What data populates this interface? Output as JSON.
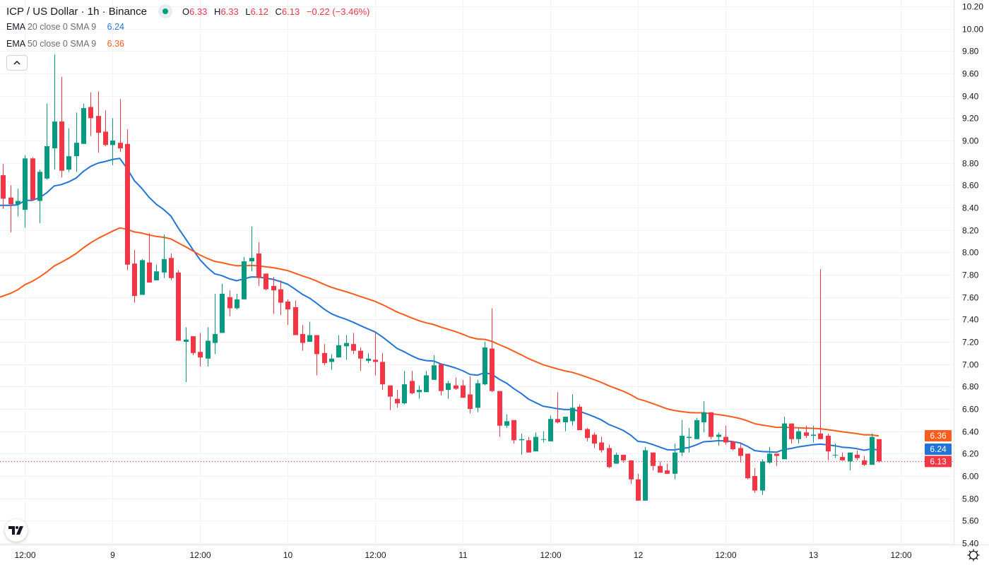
{
  "header": {
    "title": "ICP / US Dollar · 1h · Binance",
    "ohlc": [
      {
        "key": "O",
        "value": "6.33"
      },
      {
        "key": "H",
        "value": "6.33"
      },
      {
        "key": "L",
        "value": "6.12"
      },
      {
        "key": "C",
        "value": "6.13"
      }
    ],
    "change": "−0.22 (−3.46%)",
    "status_icon": "market-open-dot"
  },
  "indicators": [
    {
      "name": "EMA",
      "params": "20 close 0 SMA 9",
      "value": "6.24",
      "color": "#2175D9"
    },
    {
      "name": "EMA",
      "params": "50 close 0 SMA 9",
      "value": "6.36",
      "color": "#FF5B1A"
    }
  ],
  "collapse_icon": "chevron-up-icon",
  "collapse_label": "^",
  "logo_text": "TV",
  "colors": {
    "up": "#089981",
    "down": "#F23645",
    "grid": "#f0f3fa",
    "last_price": "#F23645"
  },
  "chart_data": {
    "type": "candlestick",
    "symbol": "ICP / US Dollar",
    "interval": "1h",
    "ylim": [
      5.4,
      10.2
    ],
    "y_ticks": [
      "10.20",
      "10.00",
      "9.80",
      "9.60",
      "9.40",
      "9.20",
      "9.00",
      "8.80",
      "8.60",
      "8.40",
      "8.20",
      "8.00",
      "7.80",
      "7.60",
      "7.40",
      "7.20",
      "7.00",
      "6.80",
      "6.60",
      "6.40",
      "6.20",
      "6.00",
      "5.80",
      "5.60",
      "5.40"
    ],
    "x_ticks": [
      {
        "label": "12:00",
        "index": 3
      },
      {
        "label": "9",
        "index": 15
      },
      {
        "label": "12:00",
        "index": 27
      },
      {
        "label": "10",
        "index": 39
      },
      {
        "label": "12:00",
        "index": 51
      },
      {
        "label": "11",
        "index": 63
      },
      {
        "label": "12:00",
        "index": 75
      },
      {
        "label": "12",
        "index": 87
      },
      {
        "label": "12:00",
        "index": 99
      },
      {
        "label": "13",
        "index": 111
      },
      {
        "label": "12:00",
        "index": 123
      }
    ],
    "grid": true,
    "last_price": 6.13,
    "price_labels": [
      {
        "value": "6.36",
        "color": "#FF5B1A"
      },
      {
        "value": "6.24",
        "color": "#2175D9"
      },
      {
        "value": "6.13",
        "color": "#F23645"
      }
    ],
    "ema": [
      {
        "period": 20,
        "seed": 8.42,
        "color": "#2175D9"
      },
      {
        "period": 50,
        "seed": 7.6,
        "color": "#FF5B1A"
      }
    ],
    "ohlc": [
      [
        8.69,
        8.79,
        8.39,
        8.48
      ],
      [
        8.49,
        8.6,
        8.18,
        8.43
      ],
      [
        8.43,
        8.57,
        8.32,
        8.46
      ],
      [
        8.38,
        8.87,
        8.22,
        8.84
      ],
      [
        8.84,
        8.85,
        8.47,
        8.47
      ],
      [
        8.46,
        8.74,
        8.26,
        8.72
      ],
      [
        8.66,
        9.33,
        8.65,
        8.95
      ],
      [
        8.93,
        9.77,
        8.74,
        9.17
      ],
      [
        9.17,
        9.57,
        8.67,
        8.73
      ],
      [
        8.74,
        9.11,
        8.72,
        8.86
      ],
      [
        8.86,
        9.25,
        8.72,
        8.98
      ],
      [
        8.97,
        9.33,
        8.97,
        9.29
      ],
      [
        9.3,
        9.43,
        9.04,
        9.2
      ],
      [
        9.22,
        9.44,
        8.89,
        9.07
      ],
      [
        9.08,
        9.27,
        8.95,
        8.96
      ],
      [
        8.96,
        9.2,
        8.78,
        9.0
      ],
      [
        8.98,
        9.37,
        8.9,
        8.93
      ],
      [
        8.97,
        9.1,
        7.84,
        7.89
      ],
      [
        7.9,
        8.02,
        7.55,
        7.61
      ],
      [
        7.62,
        7.94,
        7.62,
        7.93
      ],
      [
        7.91,
        8.17,
        7.73,
        7.73
      ],
      [
        7.75,
        7.89,
        7.75,
        7.83
      ],
      [
        7.82,
        8.16,
        7.77,
        7.94
      ],
      [
        7.95,
        7.99,
        7.75,
        7.77
      ],
      [
        7.82,
        7.84,
        7.21,
        7.21
      ],
      [
        7.2,
        7.33,
        6.84,
        7.22
      ],
      [
        7.25,
        7.25,
        7.08,
        7.1
      ],
      [
        7.11,
        7.28,
        6.98,
        7.06
      ],
      [
        7.05,
        7.33,
        6.98,
        7.21
      ],
      [
        7.19,
        7.63,
        7.09,
        7.27
      ],
      [
        7.28,
        7.72,
        7.28,
        7.63
      ],
      [
        7.6,
        7.66,
        7.43,
        7.5
      ],
      [
        7.5,
        7.63,
        7.49,
        7.58
      ],
      [
        7.58,
        7.96,
        7.58,
        7.92
      ],
      [
        7.92,
        8.23,
        7.83,
        7.95
      ],
      [
        7.99,
        8.09,
        7.7,
        7.77
      ],
      [
        7.81,
        7.81,
        7.66,
        7.67
      ],
      [
        7.7,
        7.78,
        7.45,
        7.66
      ],
      [
        7.67,
        7.75,
        7.44,
        7.55
      ],
      [
        7.56,
        7.58,
        7.35,
        7.49
      ],
      [
        7.51,
        7.57,
        7.26,
        7.26
      ],
      [
        7.27,
        7.35,
        7.12,
        7.19
      ],
      [
        7.2,
        7.38,
        7.2,
        7.26
      ],
      [
        7.26,
        7.26,
        6.9,
        7.09
      ],
      [
        7.1,
        7.18,
        6.99,
        7.01
      ],
      [
        7.02,
        7.09,
        6.95,
        7.05
      ],
      [
        7.06,
        7.26,
        7.06,
        7.17
      ],
      [
        7.16,
        7.26,
        7.04,
        7.19
      ],
      [
        7.18,
        7.28,
        7.09,
        7.12
      ],
      [
        7.12,
        7.15,
        6.94,
        7.05
      ],
      [
        7.03,
        7.1,
        7.01,
        7.05
      ],
      [
        7.04,
        7.29,
        6.9,
        7.02
      ],
      [
        7.02,
        7.1,
        6.77,
        6.82
      ],
      [
        6.81,
        6.81,
        6.59,
        6.71
      ],
      [
        6.69,
        6.77,
        6.61,
        6.65
      ],
      [
        6.65,
        6.94,
        6.64,
        6.82
      ],
      [
        6.85,
        6.94,
        6.73,
        6.74
      ],
      [
        6.75,
        6.81,
        6.69,
        6.77
      ],
      [
        6.75,
        6.94,
        6.75,
        6.9
      ],
      [
        6.86,
        7.08,
        6.86,
        6.99
      ],
      [
        7.0,
        7.0,
        6.72,
        6.76
      ],
      [
        6.77,
        6.85,
        6.69,
        6.83
      ],
      [
        6.81,
        6.88,
        6.77,
        6.78
      ],
      [
        6.81,
        6.86,
        6.7,
        6.7
      ],
      [
        6.73,
        6.89,
        6.56,
        6.6
      ],
      [
        6.61,
        6.86,
        6.57,
        6.83
      ],
      [
        6.82,
        7.2,
        6.81,
        7.15
      ],
      [
        7.14,
        7.5,
        6.75,
        6.76
      ],
      [
        6.76,
        6.76,
        6.35,
        6.45
      ],
      [
        6.45,
        6.55,
        6.43,
        6.49
      ],
      [
        6.5,
        6.5,
        6.29,
        6.32
      ],
      [
        6.32,
        6.38,
        6.19,
        6.33
      ],
      [
        6.32,
        6.35,
        6.21,
        6.21
      ],
      [
        6.22,
        6.39,
        6.22,
        6.35
      ],
      [
        6.33,
        6.4,
        6.3,
        6.33
      ],
      [
        6.31,
        6.54,
        6.31,
        6.51
      ],
      [
        6.51,
        6.75,
        6.47,
        6.48
      ],
      [
        6.48,
        6.53,
        6.4,
        6.53
      ],
      [
        6.49,
        6.73,
        6.45,
        6.61
      ],
      [
        6.62,
        6.64,
        6.41,
        6.41
      ],
      [
        6.42,
        6.43,
        6.31,
        6.34
      ],
      [
        6.37,
        6.39,
        6.25,
        6.29
      ],
      [
        6.3,
        6.35,
        6.21,
        6.23
      ],
      [
        6.25,
        6.28,
        6.07,
        6.08
      ],
      [
        6.11,
        6.21,
        6.11,
        6.19
      ],
      [
        6.19,
        6.19,
        6.12,
        6.14
      ],
      [
        6.14,
        6.14,
        5.93,
        5.97
      ],
      [
        5.97,
        6.02,
        5.78,
        5.78
      ],
      [
        5.78,
        6.26,
        5.78,
        6.23
      ],
      [
        6.21,
        6.21,
        6.05,
        6.09
      ],
      [
        6.09,
        6.13,
        6.03,
        6.03
      ],
      [
        6.05,
        6.11,
        6.02,
        6.02
      ],
      [
        6.02,
        6.29,
        5.97,
        6.21
      ],
      [
        6.21,
        6.5,
        6.18,
        6.36
      ],
      [
        6.34,
        6.43,
        6.21,
        6.35
      ],
      [
        6.33,
        6.52,
        6.33,
        6.5
      ],
      [
        6.48,
        6.67,
        6.39,
        6.57
      ],
      [
        6.57,
        6.57,
        6.33,
        6.35
      ],
      [
        6.35,
        6.39,
        6.27,
        6.37
      ],
      [
        6.35,
        6.45,
        6.28,
        6.3
      ],
      [
        6.31,
        6.31,
        6.23,
        6.24
      ],
      [
        6.25,
        6.3,
        6.12,
        6.18
      ],
      [
        6.2,
        6.2,
        5.97,
        5.98
      ],
      [
        6.0,
        6.07,
        5.85,
        5.87
      ],
      [
        5.87,
        6.15,
        5.83,
        6.13
      ],
      [
        6.12,
        6.26,
        6.11,
        6.2
      ],
      [
        6.2,
        6.2,
        6.09,
        6.18
      ],
      [
        6.15,
        6.53,
        6.15,
        6.47
      ],
      [
        6.47,
        6.47,
        6.29,
        6.33
      ],
      [
        6.33,
        6.43,
        6.29,
        6.4
      ],
      [
        6.39,
        6.45,
        6.34,
        6.36
      ],
      [
        6.36,
        6.45,
        6.3,
        6.37
      ],
      [
        6.38,
        7.85,
        6.33,
        6.33
      ],
      [
        6.36,
        6.38,
        6.14,
        6.22
      ],
      [
        6.19,
        6.29,
        6.16,
        6.19
      ],
      [
        6.17,
        6.21,
        6.14,
        6.14
      ],
      [
        6.13,
        6.21,
        6.05,
        6.21
      ],
      [
        6.19,
        6.23,
        6.14,
        6.16
      ],
      [
        6.14,
        6.18,
        6.09,
        6.1
      ],
      [
        6.1,
        6.38,
        6.1,
        6.35
      ],
      [
        6.33,
        6.33,
        6.12,
        6.13
      ]
    ]
  }
}
